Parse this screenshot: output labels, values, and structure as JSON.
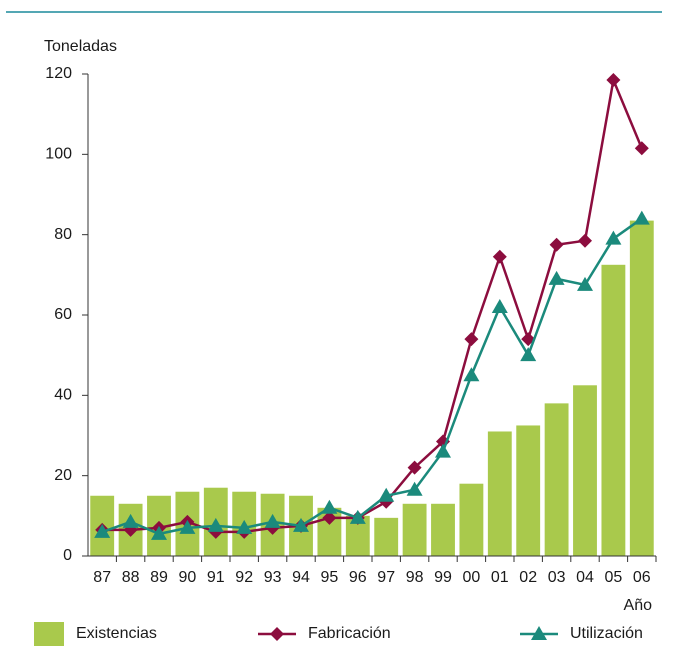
{
  "chart_data": {
    "type": "bar_line",
    "y_label": "Toneladas",
    "x_label": "Año",
    "categories": [
      "87",
      "88",
      "89",
      "90",
      "91",
      "92",
      "93",
      "94",
      "95",
      "96",
      "97",
      "98",
      "99",
      "00",
      "01",
      "02",
      "03",
      "04",
      "05",
      "06"
    ],
    "series": [
      {
        "name": "Existencias",
        "type": "bar",
        "color": "#a9c94c",
        "values": [
          15,
          13,
          15,
          16,
          17,
          16,
          15.5,
          15,
          12,
          10,
          9.5,
          13,
          13,
          18,
          31,
          32.5,
          38,
          42.5,
          72.5,
          83.5
        ]
      },
      {
        "name": "Fabricación",
        "type": "line",
        "marker": "diamond",
        "color": "#8c0d3e",
        "values": [
          6.5,
          6.5,
          7,
          8.5,
          6,
          6,
          7,
          7.5,
          9.5,
          9.5,
          13.5,
          22,
          28.5,
          54,
          74.5,
          54,
          77.5,
          78.5,
          118.5,
          101.5
        ]
      },
      {
        "name": "Utilización",
        "type": "line",
        "marker": "triangle",
        "color": "#1b8a7c",
        "values": [
          6,
          8.5,
          5.5,
          7,
          7.5,
          7,
          8.5,
          7.5,
          12,
          9.5,
          15,
          16.5,
          26,
          45,
          62,
          50,
          69,
          67.5,
          79,
          84
        ]
      }
    ],
    "ylim": [
      0,
      120
    ],
    "yticks": [
      0,
      20,
      40,
      60,
      80,
      100,
      120
    ]
  }
}
